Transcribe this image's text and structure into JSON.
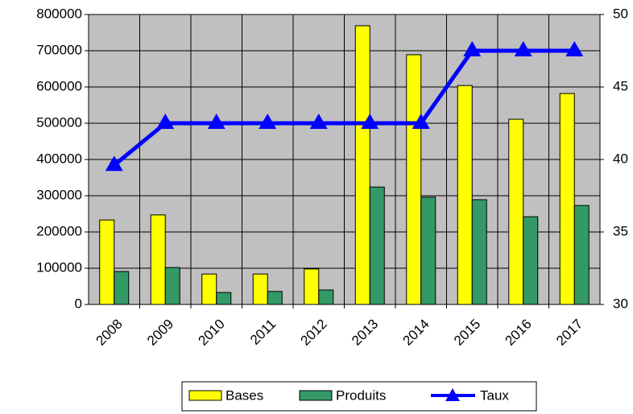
{
  "chart_data": {
    "type": "bar",
    "categories": [
      "2008",
      "2009",
      "2010",
      "2011",
      "2012",
      "2013",
      "2014",
      "2015",
      "2016",
      "2017"
    ],
    "series": [
      {
        "name": "Bases",
        "color": "#ffff00",
        "values": [
          233000,
          247000,
          84000,
          84000,
          98000,
          769000,
          689000,
          604000,
          511000,
          582000
        ]
      },
      {
        "name": "Produits",
        "color": "#339966",
        "values": [
          91000,
          102000,
          33000,
          36000,
          40000,
          324000,
          296000,
          289000,
          242000,
          273000
        ]
      },
      {
        "name": "Taux",
        "color": "#0000ff",
        "type": "line",
        "axis": "y2",
        "values": [
          39.6,
          42.5,
          42.5,
          42.5,
          42.5,
          42.5,
          42.5,
          47.5,
          47.5,
          47.5
        ]
      }
    ],
    "ylim": [
      0,
      800000
    ],
    "yticks": [
      0,
      100000,
      200000,
      300000,
      400000,
      500000,
      600000,
      700000,
      800000
    ],
    "y2lim": [
      30,
      50
    ],
    "y2ticks": [
      30,
      35,
      40,
      45,
      50
    ],
    "grid": true,
    "legend": "bottom"
  }
}
